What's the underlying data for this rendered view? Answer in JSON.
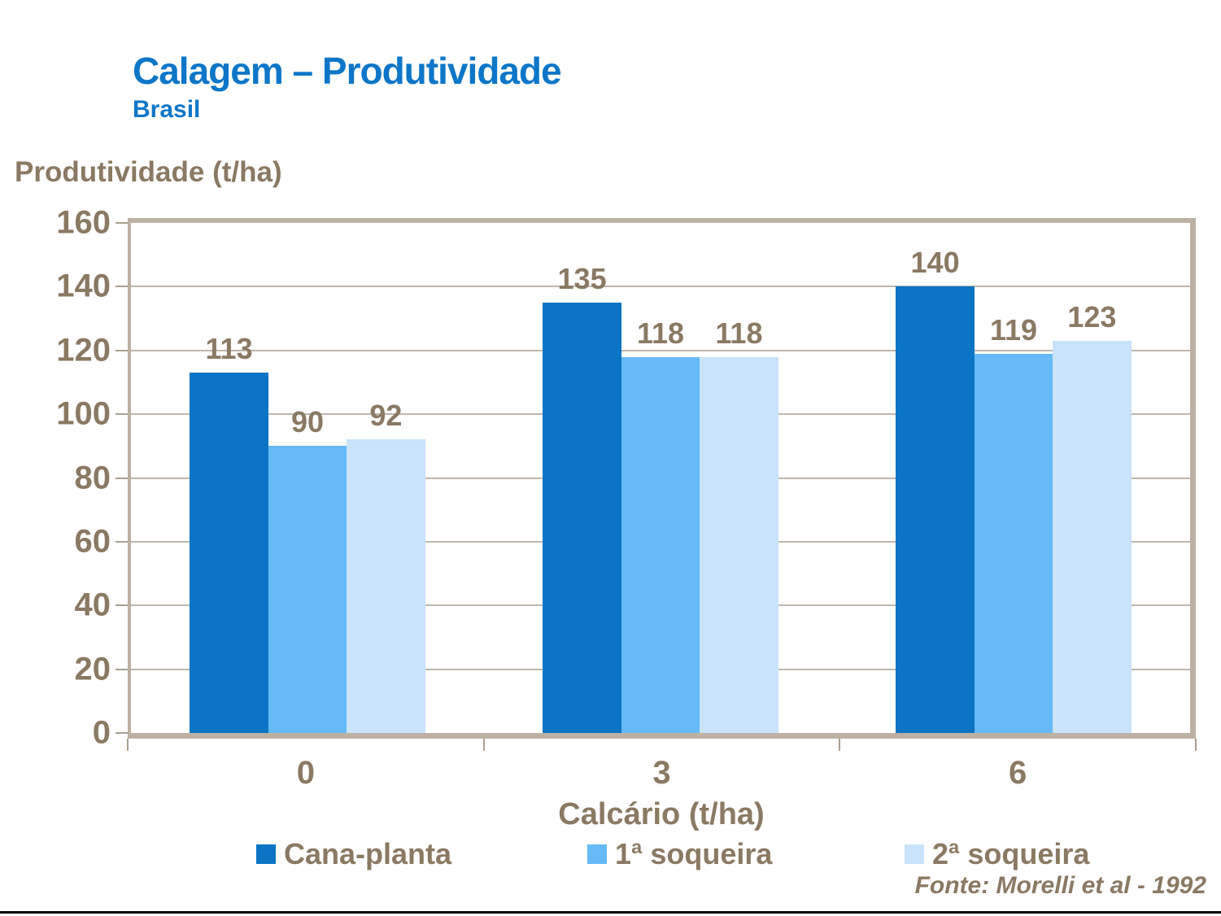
{
  "header": {
    "title": "Calagem – Produtividade",
    "subtitle": "Brasil"
  },
  "chart_data": {
    "type": "bar",
    "title": "Calagem – Produtividade (Brasil)",
    "categories": [
      "0",
      "3",
      "6"
    ],
    "series": [
      {
        "name": "Cana-planta",
        "color": "#0b74c4",
        "values": [
          113,
          135,
          140
        ]
      },
      {
        "name": "1ª soqueira",
        "color": "#66baf8",
        "values": [
          90,
          118,
          119
        ]
      },
      {
        "name": "2ª soqueira",
        "color": "#c8e3fa",
        "values": [
          92,
          118,
          123
        ]
      }
    ],
    "xlabel": "Calcário (t/ha)",
    "ylabel": "Produtividade (t/ha)",
    "ylim": [
      0,
      160
    ],
    "ytick_step": 20,
    "grid": true,
    "legend_position": "bottom",
    "data_labels": true
  },
  "footer": {
    "source": "Fonte: Morelli et al - 1992"
  },
  "colors": {
    "title_blue": "#0d76c8",
    "text_brown": "#8a7963",
    "plot_border_tan": "#bcb1a3",
    "gridline": "#a89e90",
    "bottom_rule": "#000000"
  }
}
